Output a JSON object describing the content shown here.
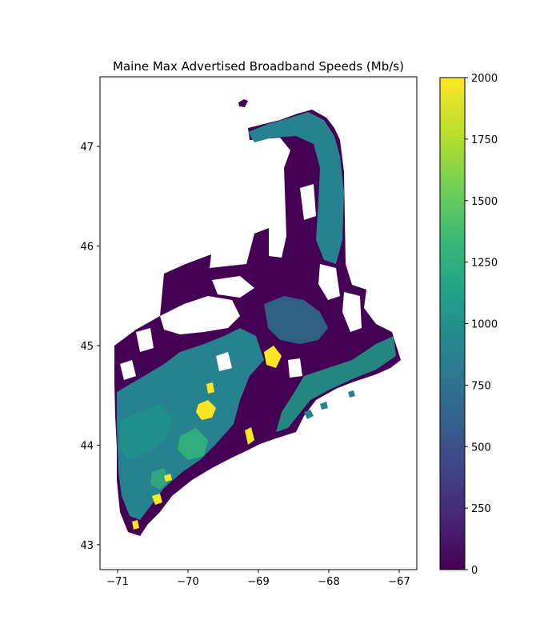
{
  "chart_data": {
    "type": "choropleth-map",
    "title": "Maine Max Advertised Broadband Speeds (Mb/s)",
    "xlabel": "",
    "ylabel": "",
    "xlim": [
      -71.25,
      -66.75
    ],
    "ylim": [
      42.75,
      47.7
    ],
    "x_ticks": [
      -71,
      -70,
      -69,
      -68,
      -67
    ],
    "y_ticks": [
      43,
      44,
      45,
      46,
      47
    ],
    "grid": false,
    "colormap": "viridis",
    "colorbar": {
      "min": 0,
      "max": 2000,
      "ticks": [
        0,
        250,
        500,
        750,
        1000,
        1250,
        1500,
        1750,
        2000
      ]
    },
    "colors": {
      "viridis": [
        "#440154",
        "#482878",
        "#3e4989",
        "#31688e",
        "#26828e",
        "#1f9e89",
        "#35b779",
        "#6ece58",
        "#b5de2b",
        "#fde725"
      ],
      "low": "#440154",
      "mid": "#26828e",
      "high": "#fde725"
    }
  }
}
